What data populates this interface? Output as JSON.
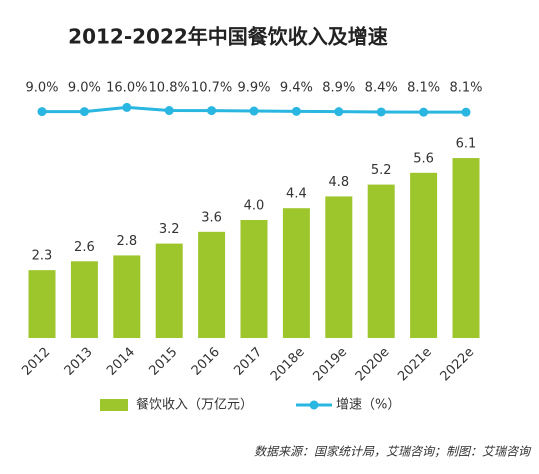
{
  "chart_data": {
    "type": "bar_line",
    "title": "2012-2022年中国餐饮收入及增速",
    "categories": [
      "2012",
      "2013",
      "2014",
      "2015",
      "2016",
      "2017",
      "2018e",
      "2019e",
      "2020e",
      "2021e",
      "2022e"
    ],
    "series": [
      {
        "name": "餐饮收入（万亿元）",
        "type": "bar",
        "color": "#9dc62d",
        "values": [
          2.3,
          2.6,
          2.8,
          3.2,
          3.6,
          4.0,
          4.4,
          4.8,
          5.2,
          5.6,
          6.1
        ],
        "value_labels": [
          "2.3",
          "2.6",
          "2.8",
          "3.2",
          "3.6",
          "4.0",
          "4.4",
          "4.8",
          "5.2",
          "5.6",
          "6.1"
        ]
      },
      {
        "name": "增速（%）",
        "type": "line",
        "color": "#29b6e0",
        "axis": "y2",
        "values": [
          9.0,
          9.0,
          16.0,
          10.8,
          10.7,
          9.9,
          9.4,
          8.9,
          8.4,
          8.1,
          8.1
        ],
        "value_labels": [
          "9.0%",
          "9.0%",
          "16.0%",
          "10.8%",
          "10.7%",
          "9.9%",
          "9.4%",
          "8.9%",
          "8.4%",
          "8.1%",
          "8.1%"
        ]
      }
    ],
    "source": "数据来源：国家统计局，艾瑞咨询；制图：艾瑞咨询"
  }
}
